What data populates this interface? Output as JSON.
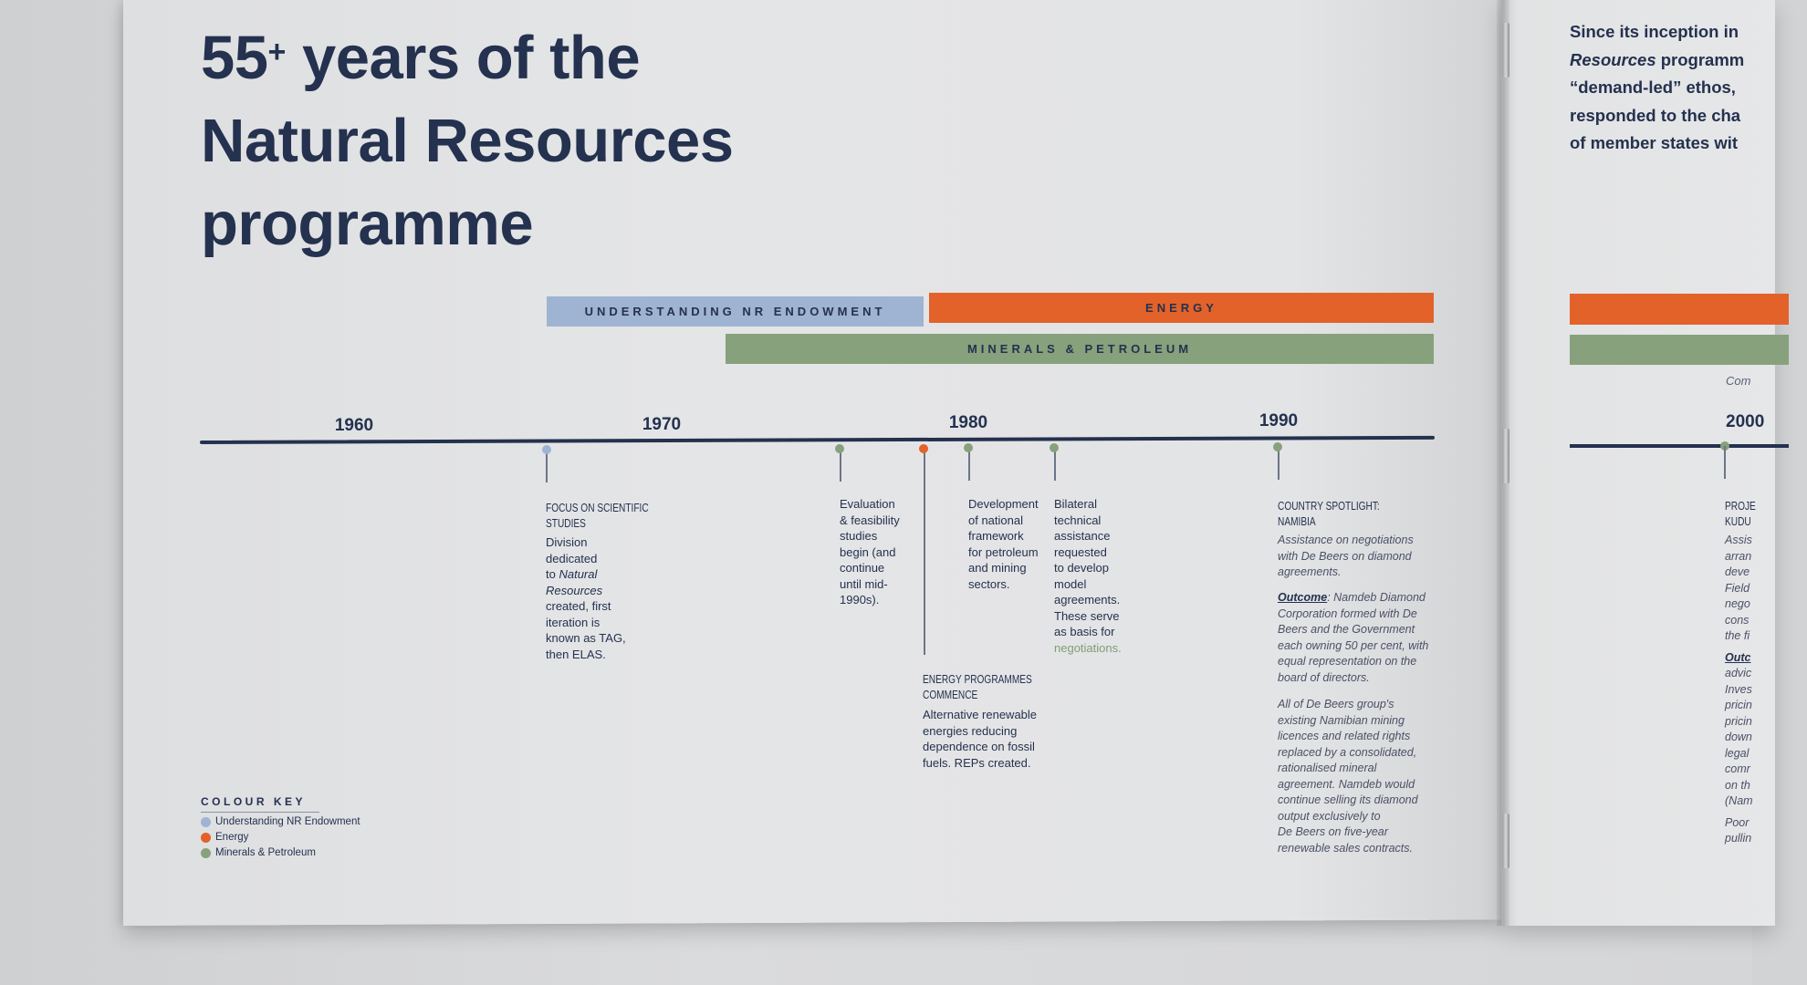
{
  "title": {
    "line1_a": "55",
    "line1_sup": "+",
    "line1_b": " years of the",
    "line2": "Natural Resources",
    "line3": "programme"
  },
  "bands": {
    "nr": "UNDERSTANDING NR ENDOWMENT",
    "energy": "ENERGY",
    "minerals": "MINERALS & PETROLEUM"
  },
  "years": [
    "1960",
    "1970",
    "1980",
    "1990",
    "2000"
  ],
  "events": {
    "focus": {
      "head1": "FOCUS ON SCIENTIFIC",
      "head2": "STUDIES",
      "b1": "Division",
      "b2": "dedicated",
      "b3": "to ",
      "b3_it": "Natural",
      "b4": "Resources",
      "b5": "created, first",
      "b6": "iteration is",
      "b7": "known as TAG,",
      "b8": "then ELAS."
    },
    "evaluation": {
      "lines": [
        "Evaluation",
        "& feasibility",
        "studies",
        " begin (and",
        "continue",
        "until mid-",
        "1990s)."
      ]
    },
    "development": {
      "lines": [
        "Development",
        "of national",
        "framework",
        "for petroleum",
        "and mining",
        "sectors."
      ]
    },
    "bilateral": {
      "lines": [
        "Bilateral",
        "technical",
        "assistance",
        "requested",
        "to develop",
        "model",
        "agreements.",
        "These serve",
        "as basis for"
      ],
      "link": "negotiations."
    },
    "energy_prog": {
      "head1": "ENERGY PROGRAMMES",
      "head2": "COMMENCE",
      "lines": [
        "Alternative renewable",
        "energies reducing",
        "dependence on fossil",
        "fuels. REPs created."
      ]
    },
    "spotlight": {
      "head1": "COUNTRY SPOTLIGHT:",
      "head2": "NAMIBIA",
      "intro": [
        "Assistance on negotiations",
        "with De Beers on diamond",
        "agreements."
      ],
      "outcome_label": "Outcome",
      "outcome": [
        ": Namdeb Diamond",
        "Corporation formed with De",
        "Beers and the Government",
        "each owning 50 per cent, with",
        "equal representation on the",
        "board of directors."
      ],
      "para2": [
        "All of De Beers group's",
        "existing Namibian mining",
        "licences and related rights",
        "replaced by a consolidated,",
        "rationalised mineral",
        "agreement. Namdeb would",
        "continue selling its diamond",
        "output exclusively to",
        "De Beers on five-year",
        "renewable sales contracts."
      ]
    }
  },
  "colour_key": {
    "title": "COLOUR KEY",
    "items": [
      "Understanding NR Endowment",
      "Energy",
      "Minerals & Petroleum"
    ]
  },
  "right_page": {
    "lines": [
      "Since its inception in",
      "Resources programm",
      "“demand-led” ethos,",
      "responded to the cha",
      "of member states wit"
    ],
    "line2_italic_word": "Resources",
    "com": "Com",
    "proj": [
      "PROJE",
      "KUDU"
    ],
    "frag": [
      "Assis",
      "arran",
      "deve",
      "Field",
      "nego",
      "cons",
      "the fi"
    ],
    "outc": "Outc",
    "frag2": [
      "advic",
      "Inves",
      "pricin",
      "pricin",
      "down",
      "legal",
      "comr",
      "on th",
      "(Nam"
    ],
    "frag3": [
      "Poor",
      "pullin"
    ]
  },
  "colors": {
    "navy": "#24314f",
    "blue": "#9fb4d2",
    "orange": "#e2622a",
    "green": "#87a17c"
  }
}
